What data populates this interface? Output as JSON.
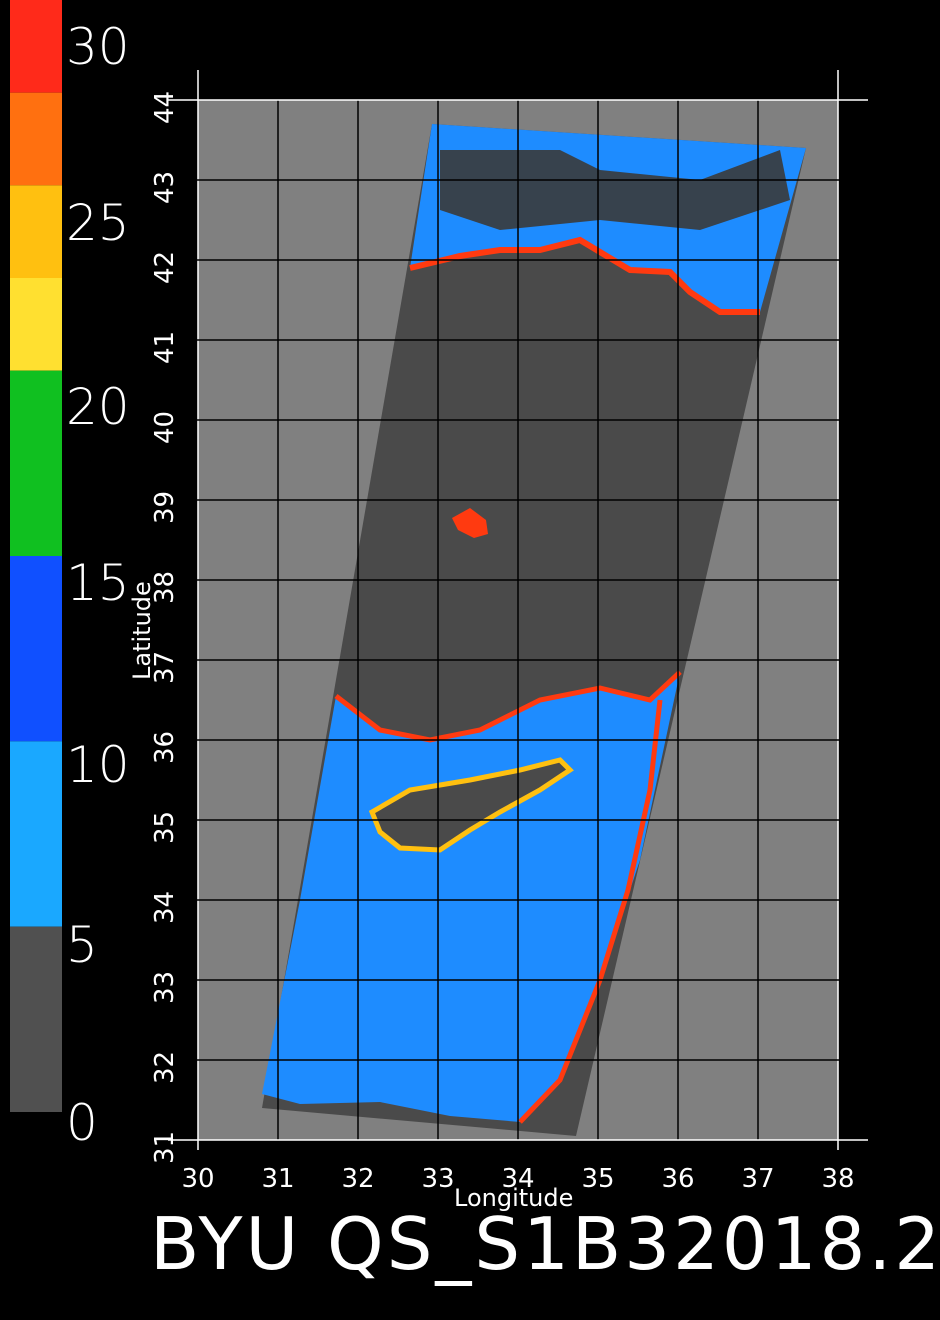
{
  "colorbar": {
    "ticks": [
      "30",
      "25",
      "20",
      "15",
      "10",
      "5",
      "0"
    ],
    "values": [
      30,
      25,
      20,
      15,
      10,
      5,
      0
    ],
    "segments": [
      {
        "from": 27.5,
        "to": 30,
        "color": "#ff2a1a"
      },
      {
        "from": 25,
        "to": 27.5,
        "color": "#ff7010"
      },
      {
        "from": 22.5,
        "to": 25,
        "color": "#ffc010"
      },
      {
        "from": 20,
        "to": 22.5,
        "color": "#ffe030"
      },
      {
        "from": 15,
        "to": 20,
        "color": "#10c020"
      },
      {
        "from": 10,
        "to": 15,
        "color": "#1050ff"
      },
      {
        "from": 5,
        "to": 10,
        "color": "#1aa8ff"
      },
      {
        "from": 0,
        "to": 5,
        "color": "#505050"
      }
    ]
  },
  "map": {
    "lat_label": "Latitude",
    "lon_label": "Longitude",
    "lat_ticks": [
      "31",
      "32",
      "33",
      "34",
      "35",
      "36",
      "37",
      "38",
      "39",
      "40",
      "41",
      "42",
      "43",
      "44"
    ],
    "lon_ticks": [
      "30",
      "31",
      "32",
      "33",
      "34",
      "35",
      "36",
      "37",
      "38"
    ],
    "lat_range": [
      31,
      44
    ],
    "lon_range": [
      30,
      38
    ],
    "background_color": "#808080",
    "swath_color": "#4a4a4a",
    "sea_color": "#1e8cff"
  },
  "footer": {
    "title": "BYU QS_S1B32018.2"
  }
}
